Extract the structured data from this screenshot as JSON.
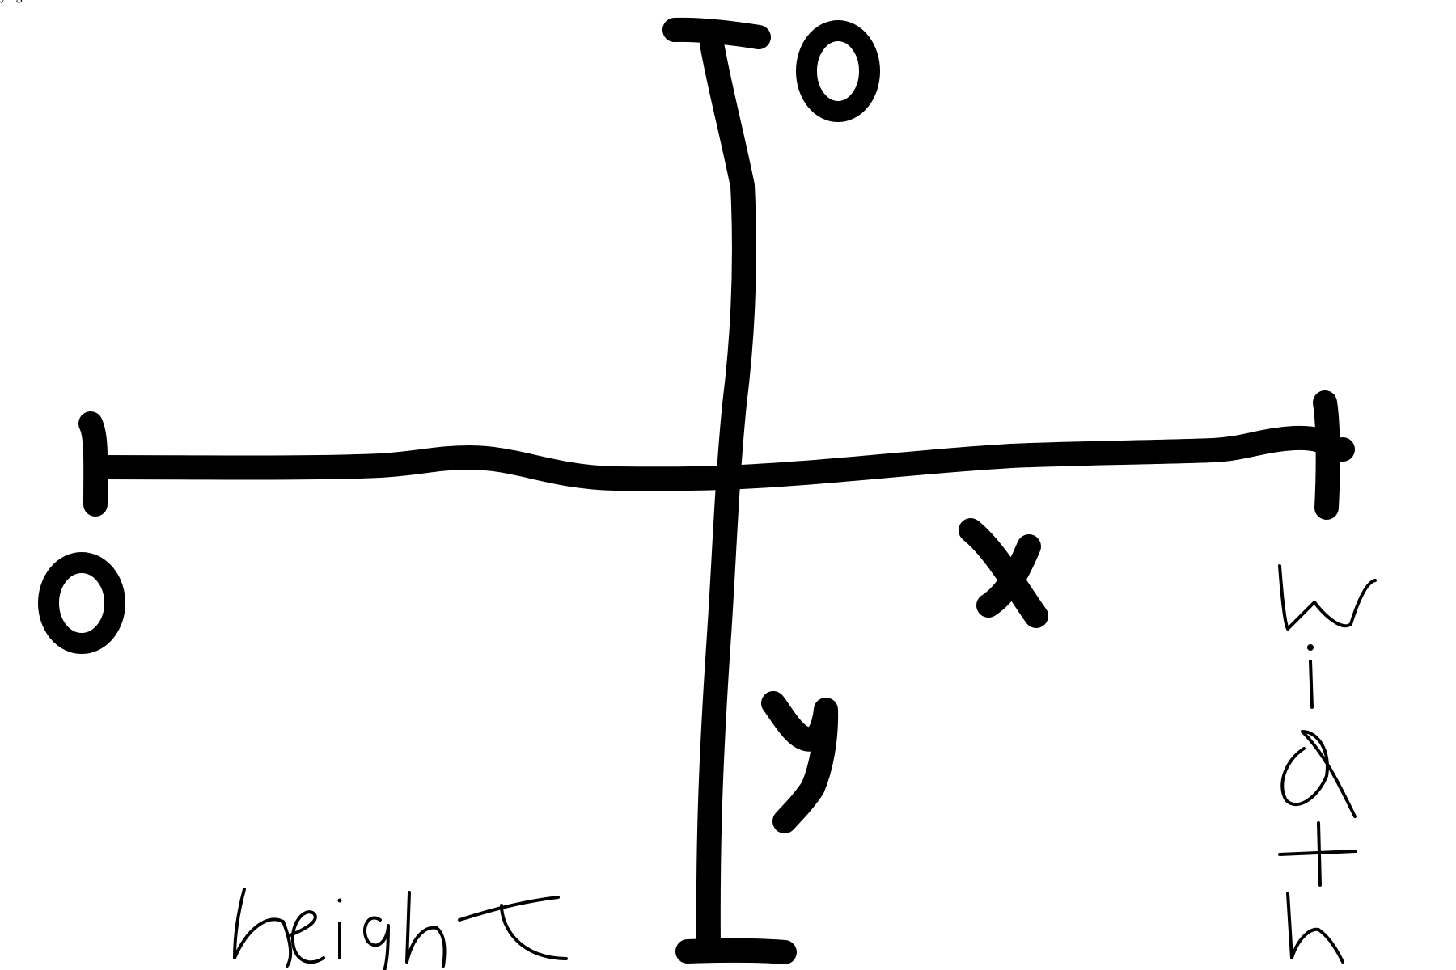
{
  "diagram": {
    "labels": {
      "x_axis": "x",
      "y_axis": "y",
      "x_origin": "0",
      "y_origin": "0",
      "width": "width",
      "height": "height"
    },
    "ink_color": "#000000",
    "background": "#ffffff"
  }
}
